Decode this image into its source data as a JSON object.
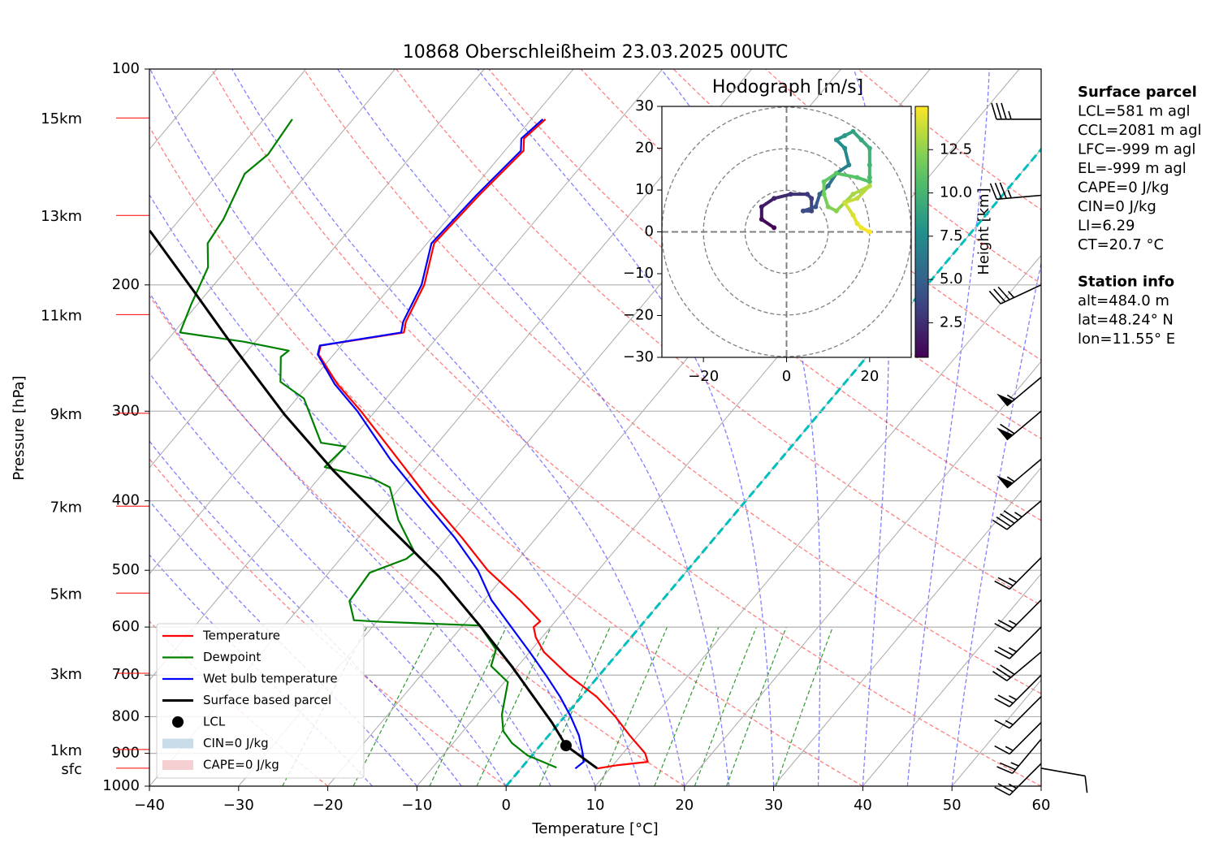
{
  "chart_data": {
    "type": "skewt",
    "title": "10868 Oberschleißheim 23.03.2025 00UTC",
    "x_label": "Temperature [°C]",
    "y_label": "Pressure [hPa]",
    "xlim": [
      -40,
      60
    ],
    "xticks": [
      {
        "value": -40,
        "label": "−40"
      },
      {
        "value": -30,
        "label": "−30"
      },
      {
        "value": -20,
        "label": "−20"
      },
      {
        "value": -10,
        "label": "−10"
      },
      0,
      10,
      20,
      30,
      40,
      50,
      60
    ],
    "ylim": [
      1000,
      100
    ],
    "yticks": [
      100,
      200,
      300,
      400,
      500,
      600,
      700,
      800,
      900,
      1000
    ],
    "log_y": true,
    "grid": true,
    "series": [
      {
        "name": "Temperature",
        "color": "#ff0000",
        "pressure": [
          945,
          935,
          925,
          900,
          850,
          800,
          750,
          700,
          650,
          620,
          600,
          589,
          550,
          500,
          450,
          400,
          350,
          300,
          275,
          250,
          243,
          233,
          225,
          200,
          175,
          150,
          130,
          125,
          117.5
        ],
        "values": [
          8.5,
          10.5,
          13.6,
          12.5,
          9.1,
          5.7,
          1.7,
          -3.5,
          -8.4,
          -10.7,
          -11.9,
          -11.7,
          -16.0,
          -22.4,
          -28.4,
          -35.4,
          -42.9,
          -51.6,
          -56.8,
          -61.7,
          -62.3,
          -54.2,
          -55.0,
          -56.4,
          -59.2,
          -58.7,
          -57.9,
          -59.0,
          -58.4
        ]
      },
      {
        "name": "Dewpoint",
        "color": "#008000",
        "pressure": [
          942,
          906,
          871,
          838,
          795,
          716,
          680,
          645,
          597,
          590,
          587,
          552,
          504,
          482,
          472,
          425,
          383,
          373,
          359,
          336,
          332,
          288,
          273,
          252,
          247,
          240,
          233,
          213,
          189,
          175,
          162,
          140,
          131.5,
          117.5
        ],
        "values": [
          3.9,
          -0.5,
          -3.4,
          -5.5,
          -7.2,
          -9.6,
          -13.0,
          -14.0,
          -18.1,
          -29.4,
          -32.7,
          -35.0,
          -35.4,
          -32.6,
          -32.3,
          -37.2,
          -41.2,
          -43.8,
          -50.4,
          -50.0,
          -53.1,
          -59.2,
          -63.4,
          -65.7,
          -65.4,
          -71.3,
          -79.3,
          -80.7,
          -82.3,
          -84.6,
          -85.1,
          -87.0,
          -86.2,
          -86.8
        ]
      },
      {
        "name": "Wet bulb temperature",
        "color": "#0000ff",
        "pressure": [
          945,
          925,
          900,
          850,
          800,
          750,
          700,
          650,
          600,
          550,
          500,
          450,
          400,
          350,
          300,
          275,
          250,
          243,
          233,
          225,
          200,
          175,
          150,
          130,
          125,
          117.5
        ],
        "values": [
          6.1,
          6.4,
          5.5,
          3.4,
          0.7,
          -2.4,
          -6.0,
          -10.0,
          -14.4,
          -19.2,
          -23.5,
          -29.2,
          -36.1,
          -43.8,
          -52.0,
          -57.1,
          -61.8,
          -62.4,
          -54.5,
          -55.3,
          -56.7,
          -59.5,
          -59.0,
          -58.2,
          -59.3,
          -58.7
        ]
      },
      {
        "name": "Surface based parcel",
        "color": "#000000",
        "pressure": [
          944,
          878,
          816,
          680,
          597,
          510,
          436,
          363,
          303,
          246,
          205,
          168
        ],
        "values": [
          8.5,
          2.9,
          -0.8,
          -10.7,
          -18.1,
          -27.3,
          -37.4,
          -49.1,
          -59.9,
          -71.5,
          -81.4,
          -92.3
        ]
      }
    ],
    "lcl": {
      "name": "LCL",
      "color": "#000000",
      "pressure": 878,
      "value": 2.9
    },
    "legend_patches": [
      {
        "name": "CIN=0 J/kg",
        "color": "#c9dcea"
      },
      {
        "name": "CAPE=0 J/kg",
        "color": "#f6cfd2"
      }
    ],
    "legend_position": "lower left",
    "height_labels": {
      "color": "#ff0000",
      "labels": [
        "15km",
        "13km",
        "11km",
        "9km",
        "7km",
        "5km",
        "3km",
        "1km",
        "sfc"
      ],
      "pressure": [
        117,
        160,
        220,
        302,
        407,
        538,
        696,
        889,
        944
      ]
    },
    "wind_barbs": {
      "pressure": [
        117.5,
        150,
        200,
        269,
        300,
        350,
        400,
        480,
        550,
        600,
        650,
        700,
        750,
        815,
        860,
        930,
        944
      ],
      "speed": [
        35,
        35,
        35,
        55,
        60,
        55,
        45,
        25,
        25,
        25,
        30,
        25,
        15,
        15,
        25,
        25,
        10
      ],
      "direction": [
        270,
        265,
        245,
        230,
        230,
        230,
        230,
        225,
        225,
        225,
        230,
        225,
        225,
        225,
        220,
        225,
        100
      ]
    },
    "hodograph": {
      "title": "Hodograph [m/s]",
      "xlim": [
        -30,
        30
      ],
      "ylim": [
        -30,
        30
      ],
      "xticks": [
        {
          "value": -20,
          "label": "−20"
        },
        0,
        20
      ],
      "yticks": [
        {
          "value": -30,
          "label": "−30"
        },
        {
          "value": -20,
          "label": "−20"
        },
        {
          "value": -10,
          "label": "−10"
        },
        0,
        10,
        20,
        30
      ],
      "u": [
        -3,
        -6,
        -6,
        -3,
        1,
        5,
        6,
        6,
        4,
        7,
        8,
        10,
        12,
        15,
        14,
        12,
        14,
        16,
        18,
        20,
        20,
        20,
        20,
        17,
        12,
        9,
        9,
        10,
        12,
        14,
        16,
        20,
        17,
        14,
        16,
        17,
        18,
        20
      ],
      "v": [
        1,
        3,
        6,
        8,
        9,
        9,
        8,
        5,
        5,
        6,
        9,
        11,
        14,
        16,
        20,
        22,
        23,
        24,
        22,
        20,
        16,
        13,
        12,
        13,
        14,
        12,
        9,
        6,
        5,
        7,
        9,
        11,
        8,
        7,
        4,
        2,
        1,
        0
      ],
      "height": [
        0.5,
        1.0,
        1.5,
        2.0,
        2.5,
        3.0,
        3.3,
        3.6,
        3.9,
        4.3,
        5.0,
        5.7,
        6.4,
        7.0,
        7.5,
        7.9,
        8.3,
        8.7,
        9.1,
        9.5,
        9.9,
        10.3,
        10.6,
        10.9,
        11.2,
        11.5,
        11.8,
        12.1,
        12.4,
        12.7,
        13.0,
        13.3,
        13.6,
        13.9,
        14.2,
        14.5,
        14.7,
        14.9
      ],
      "colorbar_label": "Height [km]",
      "colorbar_lim": [
        0.5,
        15.0
      ],
      "colorbar_ticks": [
        2.5,
        {
          "value": 5,
          "label": "5.0"
        },
        7.5,
        {
          "value": 10,
          "label": "10.0"
        },
        12.5
      ]
    },
    "text_panels": [
      {
        "title": "Surface parcel",
        "lines": [
          "LCL=581 m agl",
          "CCL=2081 m agl",
          "LFC=-999 m agl",
          "EL=-999 m agl",
          "CAPE=0 J/kg",
          "CIN=0 J/kg",
          "LI=6.29",
          "CT=20.7 °C"
        ]
      },
      {
        "title": "Station info",
        "lines": [
          "alt=484.0 m",
          "lat=48.24° N",
          "lon=11.55° E"
        ]
      }
    ]
  }
}
